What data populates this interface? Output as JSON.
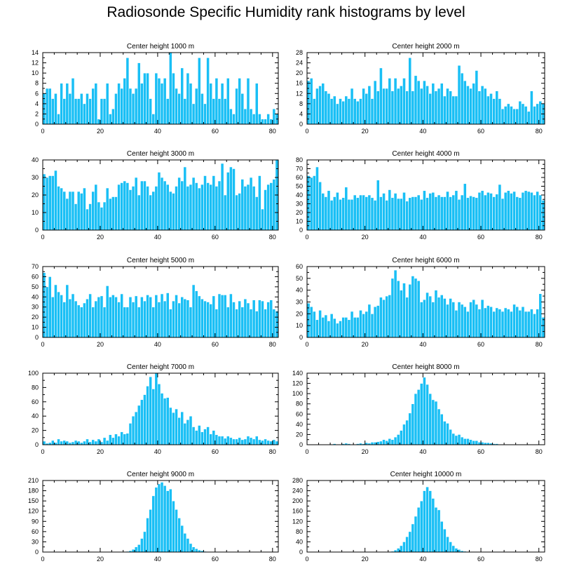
{
  "figure": {
    "title": "Radiosonde Specific Humidity rank histograms by level",
    "bar_color": "#19BFF5",
    "bar_edge_color": "#ffffff",
    "axis_color": "#000000"
  },
  "chart_data": [
    {
      "type": "bar",
      "title": "Center height 1000 m",
      "xlabel": "",
      "ylabel": "",
      "xlim": [
        0,
        82
      ],
      "ylim": [
        0,
        14
      ],
      "xticks": [
        0,
        20,
        40,
        60,
        80
      ],
      "yticks": [
        0,
        2,
        4,
        6,
        8,
        10,
        12,
        14
      ],
      "values": [
        6,
        7,
        7,
        5,
        6,
        2,
        8,
        5,
        8,
        6,
        9,
        5,
        5,
        6,
        4,
        6,
        5,
        7,
        8,
        1,
        5,
        5,
        8,
        2,
        3,
        6,
        8,
        7,
        9,
        13,
        7,
        6,
        7,
        12,
        8,
        10,
        10,
        5,
        2,
        10,
        9,
        8,
        9,
        5,
        14,
        10,
        7,
        6,
        11,
        5,
        10,
        8,
        4,
        7,
        13,
        6,
        4,
        13,
        8,
        5,
        9,
        5,
        8,
        5,
        9,
        3,
        2,
        7,
        9,
        6,
        3,
        9,
        3,
        2,
        8,
        2,
        1,
        1,
        2,
        1,
        3,
        2
      ]
    },
    {
      "type": "bar",
      "title": "Center height 2000 m",
      "xlabel": "",
      "ylabel": "",
      "xlim": [
        0,
        82
      ],
      "ylim": [
        0,
        28
      ],
      "xticks": [
        0,
        20,
        40,
        60,
        80
      ],
      "yticks": [
        0,
        4,
        8,
        12,
        16,
        20,
        24,
        28
      ],
      "values": [
        17,
        18,
        10,
        14,
        15,
        16,
        13,
        12,
        10,
        11,
        8,
        10,
        9,
        11,
        10,
        14,
        10,
        9,
        10,
        14,
        12,
        15,
        10,
        17,
        13,
        22,
        14,
        14,
        18,
        13,
        18,
        14,
        15,
        18,
        13,
        26,
        13,
        19,
        17,
        14,
        17,
        15,
        12,
        16,
        13,
        14,
        16,
        11,
        14,
        13,
        11,
        11,
        23,
        20,
        17,
        15,
        14,
        16,
        21,
        13,
        15,
        14,
        11,
        12,
        10,
        13,
        10,
        6,
        7,
        8,
        7,
        6,
        6,
        9,
        8,
        7,
        5,
        13,
        7,
        8,
        9,
        8
      ]
    },
    {
      "type": "bar",
      "title": "Center height 3000 m",
      "xlabel": "",
      "ylabel": "",
      "xlim": [
        0,
        82
      ],
      "ylim": [
        0,
        40
      ],
      "xticks": [
        0,
        20,
        40,
        60,
        80
      ],
      "yticks": [
        0,
        10,
        20,
        30,
        40
      ],
      "values": [
        32,
        30,
        31,
        31,
        34,
        25,
        24,
        22,
        18,
        22,
        22,
        15,
        22,
        21,
        24,
        12,
        15,
        22,
        26,
        16,
        13,
        16,
        24,
        18,
        19,
        19,
        26,
        27,
        28,
        27,
        23,
        25,
        30,
        20,
        28,
        28,
        25,
        20,
        22,
        25,
        33,
        30,
        28,
        26,
        22,
        21,
        25,
        30,
        28,
        36,
        25,
        26,
        30,
        27,
        24,
        26,
        31,
        27,
        26,
        31,
        25,
        28,
        38,
        20,
        33,
        36,
        35,
        20,
        21,
        29,
        25,
        26,
        30,
        25,
        19,
        31,
        12,
        23,
        26,
        27,
        29,
        40
      ]
    },
    {
      "type": "bar",
      "title": "Center height 4000 m",
      "xlabel": "",
      "ylabel": "",
      "xlim": [
        0,
        82
      ],
      "ylim": [
        0,
        80
      ],
      "xticks": [
        0,
        20,
        40,
        60,
        80
      ],
      "yticks": [
        0,
        10,
        20,
        30,
        40,
        50,
        60,
        70,
        80
      ],
      "values": [
        62,
        60,
        62,
        72,
        55,
        42,
        38,
        45,
        34,
        38,
        43,
        35,
        37,
        49,
        35,
        35,
        40,
        37,
        40,
        40,
        38,
        40,
        37,
        34,
        57,
        38,
        42,
        34,
        46,
        37,
        42,
        36,
        36,
        43,
        33,
        37,
        38,
        38,
        40,
        35,
        45,
        37,
        42,
        43,
        38,
        40,
        38,
        38,
        44,
        38,
        40,
        45,
        35,
        40,
        53,
        37,
        39,
        38,
        37,
        43,
        45,
        40,
        43,
        42,
        38,
        41,
        52,
        36,
        43,
        45,
        42,
        44,
        38,
        37,
        43,
        45,
        44,
        43,
        40,
        44,
        40,
        34
      ]
    },
    {
      "type": "bar",
      "title": "Center height 5000 m",
      "xlabel": "",
      "ylabel": "",
      "xlim": [
        0,
        82
      ],
      "ylim": [
        0,
        70
      ],
      "xticks": [
        0,
        20,
        40,
        60,
        80
      ],
      "yticks": [
        0,
        10,
        20,
        30,
        40,
        50,
        60,
        70
      ],
      "values": [
        64,
        50,
        60,
        40,
        52,
        45,
        42,
        35,
        52,
        38,
        43,
        36,
        32,
        30,
        34,
        38,
        43,
        30,
        36,
        40,
        41,
        30,
        51,
        40,
        42,
        40,
        35,
        43,
        30,
        30,
        40,
        35,
        41,
        30,
        40,
        36,
        42,
        40,
        30,
        42,
        35,
        43,
        36,
        44,
        28,
        36,
        42,
        34,
        40,
        38,
        37,
        30,
        52,
        46,
        41,
        38,
        36,
        35,
        33,
        41,
        28,
        43,
        42,
        42,
        30,
        43,
        35,
        28,
        36,
        30,
        38,
        34,
        28,
        37,
        26,
        37,
        36,
        28,
        35,
        37,
        28,
        26
      ]
    },
    {
      "type": "bar",
      "title": "Center height 6000 m",
      "xlabel": "",
      "ylabel": "",
      "xlim": [
        0,
        82
      ],
      "ylim": [
        0,
        60
      ],
      "xticks": [
        0,
        20,
        40,
        60,
        80
      ],
      "yticks": [
        0,
        10,
        20,
        30,
        40,
        50,
        60
      ],
      "values": [
        29,
        26,
        22,
        15,
        23,
        17,
        19,
        14,
        20,
        16,
        12,
        14,
        17,
        17,
        15,
        22,
        17,
        17,
        23,
        20,
        22,
        28,
        20,
        26,
        27,
        34,
        32,
        35,
        36,
        50,
        57,
        48,
        40,
        46,
        34,
        45,
        52,
        50,
        48,
        30,
        32,
        38,
        35,
        30,
        40,
        34,
        36,
        33,
        28,
        33,
        30,
        23,
        30,
        28,
        26,
        22,
        30,
        32,
        28,
        24,
        32,
        25,
        27,
        26,
        22,
        25,
        24,
        22,
        25,
        24,
        22,
        28,
        26,
        23,
        26,
        22,
        22,
        24,
        20,
        24,
        37,
        17
      ]
    },
    {
      "type": "bar",
      "title": "Center height 7000 m",
      "xlabel": "",
      "ylabel": "",
      "xlim": [
        0,
        82
      ],
      "ylim": [
        0,
        100
      ],
      "xticks": [
        0,
        20,
        40,
        60,
        80
      ],
      "yticks": [
        0,
        20,
        40,
        60,
        80,
        100
      ],
      "values": [
        5,
        2,
        3,
        6,
        3,
        8,
        5,
        6,
        5,
        3,
        4,
        6,
        5,
        3,
        5,
        8,
        4,
        7,
        5,
        8,
        4,
        10,
        6,
        14,
        10,
        15,
        12,
        18,
        15,
        16,
        30,
        40,
        46,
        55,
        63,
        70,
        82,
        95,
        78,
        100,
        85,
        72,
        65,
        66,
        52,
        45,
        50,
        38,
        46,
        30,
        35,
        40,
        25,
        20,
        27,
        18,
        22,
        25,
        15,
        20,
        14,
        12,
        12,
        9,
        12,
        10,
        8,
        8,
        10,
        7,
        8,
        12,
        10,
        8,
        12,
        7,
        6,
        8,
        6,
        5,
        7,
        5
      ]
    },
    {
      "type": "bar",
      "title": "Center height 8000 m",
      "xlabel": "",
      "ylabel": "",
      "xlim": [
        0,
        82
      ],
      "ylim": [
        0,
        140
      ],
      "xticks": [
        0,
        20,
        40,
        60,
        80
      ],
      "yticks": [
        0,
        20,
        40,
        60,
        80,
        100,
        120,
        140
      ],
      "values": [
        0,
        0,
        1,
        0,
        1,
        0,
        0,
        1,
        1,
        2,
        1,
        1,
        2,
        3,
        2,
        1,
        1,
        2,
        3,
        2,
        4,
        3,
        5,
        5,
        6,
        7,
        10,
        8,
        12,
        10,
        15,
        20,
        28,
        40,
        48,
        62,
        80,
        100,
        108,
        120,
        132,
        118,
        100,
        88,
        85,
        70,
        60,
        46,
        42,
        30,
        22,
        18,
        20,
        15,
        12,
        12,
        10,
        8,
        8,
        5,
        5,
        4,
        4,
        3,
        2,
        2,
        1,
        1,
        1,
        1,
        1,
        0,
        1,
        0,
        0,
        0,
        0,
        0,
        0,
        0,
        0,
        0
      ]
    },
    {
      "type": "bar",
      "title": "Center height 9000 m",
      "xlabel": "",
      "ylabel": "",
      "xlim": [
        0,
        82
      ],
      "ylim": [
        0,
        210
      ],
      "xticks": [
        0,
        20,
        40,
        60,
        80
      ],
      "yticks": [
        0,
        30,
        60,
        90,
        120,
        150,
        180,
        210
      ],
      "values": [
        0,
        0,
        0,
        0,
        0,
        0,
        0,
        0,
        0,
        0,
        0,
        0,
        0,
        0,
        0,
        0,
        0,
        0,
        0,
        0,
        0,
        0,
        0,
        0,
        0,
        0,
        0,
        0,
        1,
        2,
        4,
        8,
        15,
        22,
        40,
        60,
        100,
        125,
        165,
        190,
        200,
        205,
        195,
        180,
        185,
        150,
        125,
        100,
        78,
        55,
        40,
        25,
        15,
        10,
        6,
        4,
        2,
        1,
        1,
        0,
        0,
        0,
        0,
        0,
        0,
        0,
        0,
        0,
        0,
        0,
        0,
        0,
        0,
        0,
        0,
        0,
        0,
        0,
        0,
        0,
        0,
        0
      ]
    },
    {
      "type": "bar",
      "title": "Center height 10000 m",
      "xlabel": "",
      "ylabel": "",
      "xlim": [
        0,
        82
      ],
      "ylim": [
        0,
        280
      ],
      "xticks": [
        0,
        20,
        40,
        60,
        80
      ],
      "yticks": [
        0,
        40,
        80,
        120,
        160,
        200,
        240,
        280
      ],
      "values": [
        0,
        0,
        0,
        0,
        0,
        0,
        0,
        0,
        0,
        0,
        0,
        0,
        0,
        0,
        0,
        0,
        0,
        0,
        0,
        0,
        0,
        0,
        0,
        0,
        0,
        0,
        0,
        0,
        1,
        3,
        8,
        15,
        25,
        40,
        60,
        80,
        110,
        140,
        175,
        200,
        240,
        255,
        240,
        210,
        175,
        165,
        120,
        90,
        60,
        40,
        25,
        15,
        10,
        5,
        3,
        1,
        0,
        0,
        0,
        0,
        0,
        0,
        0,
        0,
        0,
        0,
        0,
        0,
        0,
        0,
        0,
        0,
        0,
        0,
        0,
        0,
        0,
        0,
        0,
        0,
        0,
        0
      ]
    }
  ]
}
